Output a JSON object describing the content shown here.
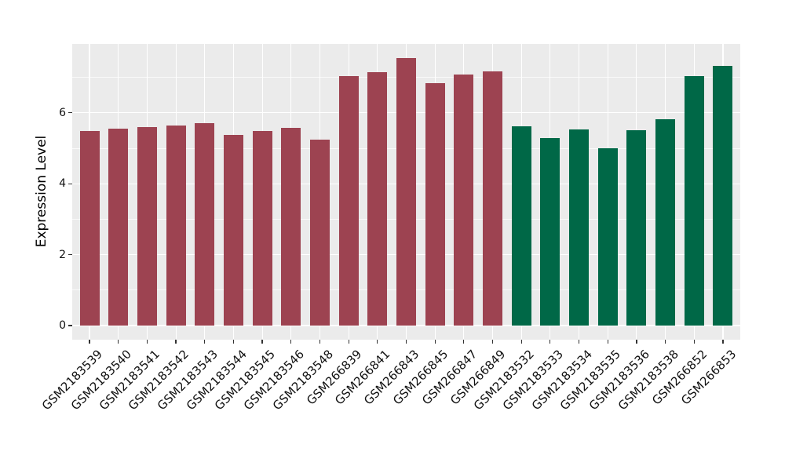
{
  "figure": {
    "background": "#FFFFFF",
    "panel_background": "#EBEBEB",
    "grid_color": "#FFFFFF",
    "tick_color": "#333333",
    "text_color": "#111111"
  },
  "chart_data": {
    "type": "bar",
    "title": "",
    "xlabel": "",
    "ylabel": "Expression Level",
    "legend_position": "none",
    "grid": "on",
    "x_label_rotation_deg": -45,
    "y_ticks": [
      0,
      2,
      4,
      6
    ],
    "y_minor_ticks": [
      1,
      3,
      5,
      7
    ],
    "ylim": [
      -0.4,
      7.94
    ],
    "group_colors": {
      "groupA": "#9D4351",
      "groupB": "#006847"
    },
    "categories": [
      "GSM2183539",
      "GSM2183540",
      "GSM2183541",
      "GSM2183542",
      "GSM2183543",
      "GSM2183544",
      "GSM2183545",
      "GSM2183546",
      "GSM2183548",
      "GSM266839",
      "GSM266841",
      "GSM266843",
      "GSM266845",
      "GSM266847",
      "GSM266849",
      "GSM2183532",
      "GSM2183533",
      "GSM2183534",
      "GSM2183535",
      "GSM2183536",
      "GSM2183538",
      "GSM266852",
      "GSM266853"
    ],
    "values": [
      5.48,
      5.56,
      5.6,
      5.65,
      5.7,
      5.38,
      5.49,
      5.57,
      5.25,
      7.03,
      7.15,
      7.54,
      6.83,
      7.08,
      7.17,
      5.62,
      5.28,
      5.53,
      5.0,
      5.51,
      5.81,
      7.03,
      7.32
    ],
    "groups": [
      "groupA",
      "groupA",
      "groupA",
      "groupA",
      "groupA",
      "groupA",
      "groupA",
      "groupA",
      "groupA",
      "groupA",
      "groupA",
      "groupA",
      "groupA",
      "groupA",
      "groupA",
      "groupB",
      "groupB",
      "groupB",
      "groupB",
      "groupB",
      "groupB",
      "groupB",
      "groupB"
    ]
  }
}
